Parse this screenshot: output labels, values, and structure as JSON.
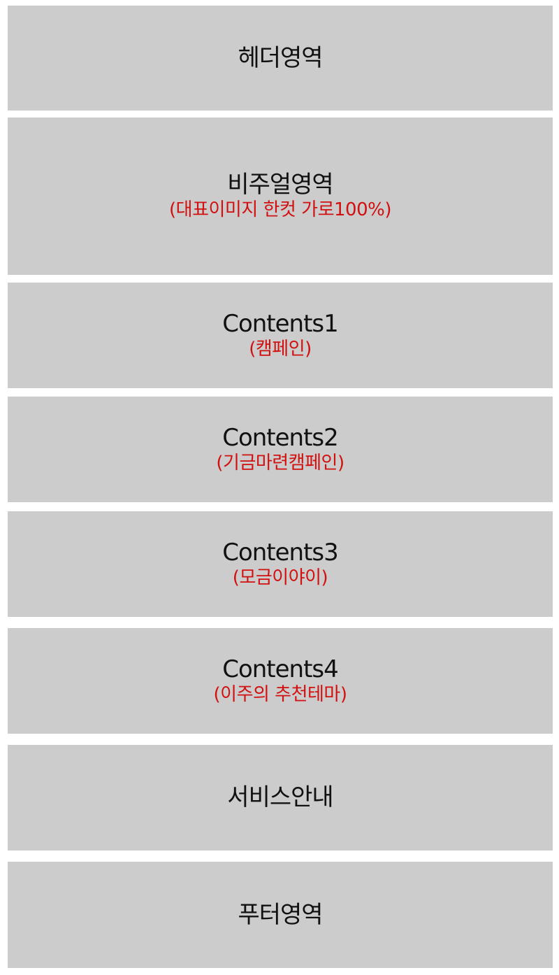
{
  "blocks": {
    "header": {
      "title": "헤더영역",
      "sub": ""
    },
    "visual": {
      "title": "비주얼영역",
      "sub": "(대표이미지 한컷 가로100%)"
    },
    "c1": {
      "title": "Contents1",
      "sub": "(캠페인)"
    },
    "c2": {
      "title": "Contents2",
      "sub": "(기금마련캠페인)"
    },
    "c3": {
      "title": "Contents3",
      "sub": "(모금이야이)"
    },
    "c4": {
      "title": "Contents4",
      "sub": "(이주의 추천테마)"
    },
    "service": {
      "title": "서비스안내",
      "sub": ""
    },
    "footer": {
      "title": "푸터영역",
      "sub": ""
    }
  },
  "colors": {
    "block_background": "#cccccc",
    "title_text": "#111111",
    "subtitle_text": "#d11010",
    "page_background": "#ffffff"
  }
}
